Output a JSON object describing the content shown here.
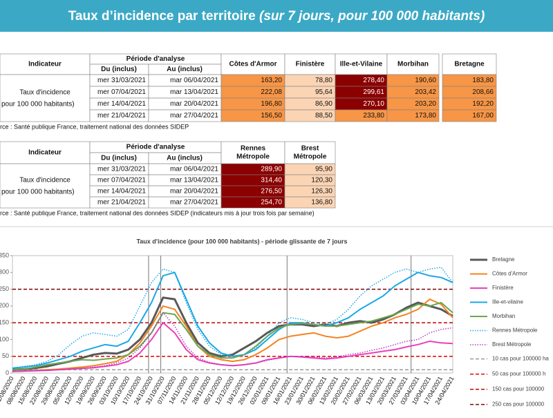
{
  "header": {
    "title": "Taux d’incidence par territoire",
    "subtitle": "(sur 7 jours, pour 100 000 habitants)"
  },
  "table1": {
    "indicator": "Indicateur",
    "period": "Période d'analyse",
    "from": "Du (inclus)",
    "to": "Au (inclus)",
    "columns": [
      "Côtes d'Armor",
      "Finistère",
      "Ille-et-Vilaine",
      "Morbihan",
      "Bretagne"
    ],
    "row_label": [
      "Taux d'incidence",
      "pour 100 000 habitants)"
    ],
    "rows": [
      [
        "mer 31/03/2021",
        "mar 06/04/2021",
        "163,20",
        "78,80",
        "278,40",
        "190,60",
        "183,80"
      ],
      [
        "mer 07/04/2021",
        "mar 13/04/2021",
        "222,08",
        "95,64",
        "299,61",
        "203,42",
        "208,66"
      ],
      [
        "mer 14/04/2021",
        "mar 20/04/2021",
        "196,80",
        "86,90",
        "270,10",
        "203,20",
        "192,20"
      ],
      [
        "mer 21/04/2021",
        "mar 27/04/2021",
        "156,50",
        "88,50",
        "233,80",
        "173,80",
        "167,00"
      ]
    ],
    "source": "rce : Santé publique France, traitement national des données SIDEP"
  },
  "table2": {
    "indicator": "Indicateur",
    "period": "Période d'analyse",
    "from": "Du (inclus)",
    "to": "Au (inclus)",
    "columns": [
      [
        "Rennes",
        "Métropole"
      ],
      [
        "Brest",
        "Métropole"
      ]
    ],
    "row_label": [
      "Taux d'incidence",
      "pour 100 000 habitants)"
    ],
    "rows": [
      [
        "mer 31/03/2021",
        "mar 06/04/2021",
        "289,90",
        "95,90"
      ],
      [
        "mer 07/04/2021",
        "mar 13/04/2021",
        "314,40",
        "120,30"
      ],
      [
        "mer 14/04/2021",
        "mar 20/04/2021",
        "276,50",
        "126,30"
      ],
      [
        "mer 21/04/2021",
        "mar 27/04/2021",
        "254,70",
        "136,80"
      ]
    ],
    "source": "rce : Santé publique France, traitement national des données SIDEP (indicateurs mis à jour trois fois par semaine)"
  },
  "chart_data": {
    "type": "line",
    "title": "Taux d'incidence (pour 100 000 habitants) - période glissante de 7 jours",
    "categories": [
      "01/08/2020",
      "08/08/2020",
      "15/08/2020",
      "22/08/2020",
      "29/08/2020",
      "05/09/2020",
      "12/09/2020",
      "19/09/2020",
      "26/09/2020",
      "03/10/2020",
      "10/10/2020",
      "17/10/2020",
      "24/10/2020",
      "31/10/2020",
      "07/11/2020",
      "14/11/2020",
      "21/11/2020",
      "28/11/2020",
      "05/12/2020",
      "12/12/2020",
      "19/12/2020",
      "26/12/2020",
      "02/01/2021",
      "09/01/2021",
      "16/01/2021",
      "23/01/2021",
      "30/01/2021",
      "06/02/2021",
      "13/02/2021",
      "20/02/2021",
      "27/02/2021",
      "06/03/2021",
      "13/03/2021",
      "20/03/2021",
      "27/03/2021",
      "03/04/2021",
      "10/04/2021",
      "17/04/2021",
      "24/04/2021"
    ],
    "ylim": [
      0,
      350
    ],
    "yticks": [
      0,
      50,
      100,
      150,
      200,
      250,
      300,
      350
    ],
    "series": [
      {
        "name": "Bretagne",
        "color": "#595959",
        "width": 3,
        "dotted": false,
        "values": [
          10,
          12,
          15,
          20,
          28,
          35,
          45,
          55,
          60,
          58,
          70,
          100,
          150,
          225,
          220,
          150,
          90,
          60,
          50,
          55,
          75,
          95,
          120,
          140,
          145,
          145,
          140,
          145,
          140,
          150,
          155,
          150,
          160,
          175,
          195,
          210,
          200,
          190,
          170
        ]
      },
      {
        "name": "Côtes d'Armor",
        "color": "#f58220",
        "width": 2,
        "dotted": false,
        "values": [
          5,
          6,
          8,
          10,
          12,
          15,
          18,
          22,
          28,
          35,
          55,
          90,
          140,
          200,
          190,
          140,
          80,
          50,
          40,
          35,
          40,
          55,
          75,
          100,
          110,
          115,
          120,
          110,
          105,
          110,
          125,
          140,
          150,
          165,
          175,
          190,
          220,
          205,
          165
        ]
      },
      {
        "name": "Finistère",
        "color": "#ec3fb8",
        "width": 2,
        "dotted": false,
        "values": [
          5,
          6,
          7,
          8,
          10,
          12,
          14,
          16,
          20,
          25,
          35,
          60,
          100,
          150,
          120,
          70,
          40,
          30,
          25,
          22,
          25,
          30,
          40,
          45,
          50,
          48,
          45,
          42,
          45,
          50,
          55,
          60,
          65,
          70,
          78,
          85,
          95,
          90,
          88
        ]
      },
      {
        "name": "Ille-et-vilaine",
        "color": "#1aa7e6",
        "width": 2,
        "dotted": false,
        "values": [
          15,
          18,
          22,
          30,
          40,
          50,
          65,
          75,
          85,
          80,
          95,
          150,
          210,
          290,
          300,
          220,
          140,
          90,
          60,
          50,
          55,
          70,
          100,
          130,
          150,
          150,
          145,
          140,
          150,
          165,
          190,
          210,
          230,
          260,
          280,
          300,
          290,
          285,
          270
        ]
      },
      {
        "name": "Morbihan",
        "color": "#6aa84f",
        "width": 2,
        "dotted": false,
        "values": [
          10,
          12,
          18,
          25,
          30,
          35,
          40,
          38,
          42,
          45,
          55,
          80,
          120,
          180,
          175,
          130,
          80,
          55,
          45,
          45,
          55,
          80,
          110,
          135,
          145,
          148,
          145,
          140,
          140,
          145,
          150,
          155,
          165,
          175,
          190,
          205,
          200,
          210,
          180
        ]
      },
      {
        "name": "Rennes Métropole",
        "color": "#1aa7e6",
        "width": 1.5,
        "dotted": true,
        "values": [
          15,
          20,
          25,
          35,
          55,
          85,
          110,
          120,
          115,
          110,
          130,
          200,
          270,
          310,
          300,
          210,
          130,
          80,
          55,
          50,
          55,
          75,
          110,
          150,
          165,
          160,
          150,
          145,
          160,
          190,
          230,
          260,
          280,
          300,
          310,
          300,
          310,
          315,
          270
        ]
      },
      {
        "name": "Brest Métropole",
        "color": "#b03cc0",
        "width": 1.5,
        "dotted": true,
        "values": [
          5,
          6,
          7,
          8,
          10,
          12,
          14,
          18,
          22,
          30,
          45,
          75,
          120,
          180,
          140,
          80,
          45,
          32,
          25,
          22,
          25,
          30,
          38,
          45,
          50,
          50,
          48,
          45,
          48,
          55,
          60,
          68,
          75,
          85,
          95,
          100,
          120,
          130,
          135
        ]
      }
    ],
    "reference_lines": [
      {
        "name": "10 cas pour 100000 ha",
        "value": 10,
        "color": "#999999"
      },
      {
        "name": "50 cas pour 100000 h",
        "value": 50,
        "color": "#e00000"
      },
      {
        "name": "150 cas pour 100000",
        "value": 150,
        "color": "#c00000"
      },
      {
        "name": "250 cas pour 100000",
        "value": 250,
        "color": "#800000"
      }
    ]
  }
}
